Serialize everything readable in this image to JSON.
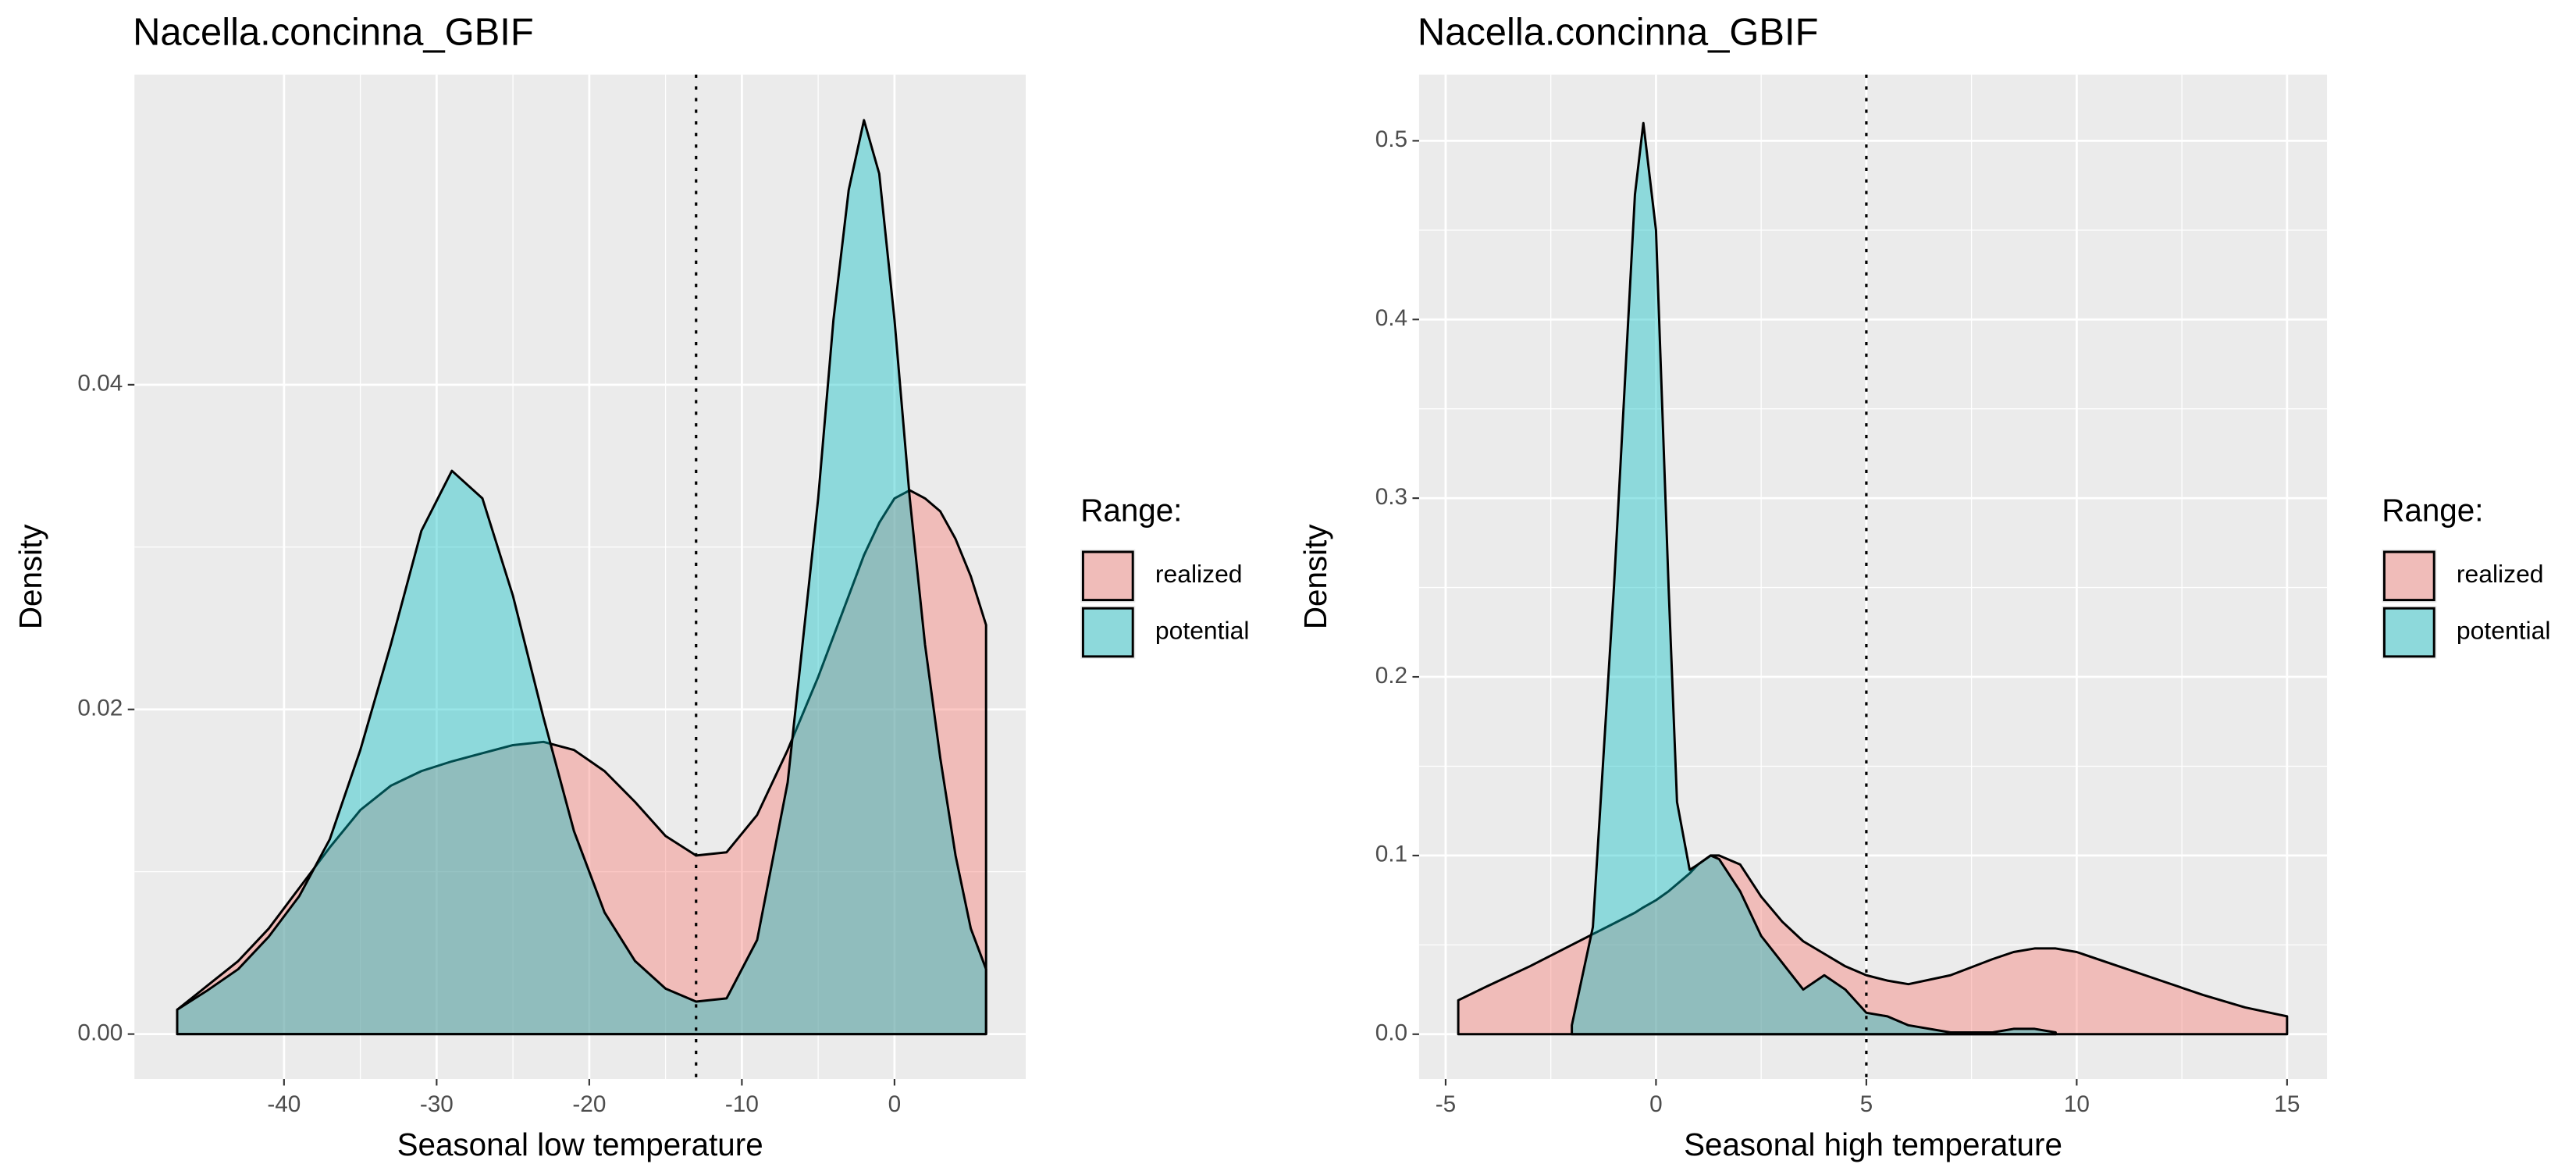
{
  "chart_data": [
    {
      "type": "area",
      "title": "Nacella.concinna_GBIF",
      "xlabel": "Seasonal low temperature",
      "ylabel": "Density",
      "legend_title": "Range:",
      "x": [
        -47,
        -45,
        -43,
        -41,
        -39,
        -37,
        -35,
        -33,
        -31,
        -29,
        -27,
        -25,
        -23,
        -21,
        -19,
        -17,
        -15,
        -13,
        -11,
        -9,
        -7,
        -5,
        -4,
        -3,
        -2,
        -1,
        0,
        1,
        2,
        3,
        4,
        5,
        6
      ],
      "series": [
        {
          "name": "realized",
          "color": "#F8766D",
          "values": [
            0.0015,
            0.003,
            0.0045,
            0.0065,
            0.009,
            0.0115,
            0.0138,
            0.0153,
            0.0162,
            0.0168,
            0.0173,
            0.0178,
            0.018,
            0.0175,
            0.0162,
            0.0143,
            0.0122,
            0.011,
            0.0112,
            0.0135,
            0.0175,
            0.022,
            0.0245,
            0.027,
            0.0295,
            0.0315,
            0.033,
            0.0335,
            0.033,
            0.0322,
            0.0305,
            0.0282,
            0.0252
          ]
        },
        {
          "name": "potential",
          "color": "#00BFC4",
          "values": [
            0.0015,
            0.0027,
            0.004,
            0.006,
            0.0085,
            0.012,
            0.0175,
            0.024,
            0.031,
            0.0347,
            0.033,
            0.027,
            0.0195,
            0.0125,
            0.0075,
            0.0045,
            0.0028,
            0.002,
            0.0022,
            0.0058,
            0.0155,
            0.033,
            0.044,
            0.052,
            0.0563,
            0.053,
            0.044,
            0.033,
            0.024,
            0.017,
            0.011,
            0.0065,
            0.004
          ]
        }
      ],
      "reference_line": -13,
      "xlim": [
        -49.8,
        8.6
      ],
      "ylim": [
        -0.00276,
        0.0591
      ],
      "xticks": [
        -40,
        -30,
        -20,
        -10,
        0
      ],
      "yticks": [
        {
          "value": 0,
          "label": "0.00"
        },
        {
          "value": 0.02,
          "label": "0.02"
        },
        {
          "value": 0.04,
          "label": "0.04"
        }
      ],
      "grid": true
    },
    {
      "type": "area",
      "title": "Nacella.concinna_GBIF",
      "xlabel": "Seasonal high temperature",
      "ylabel": "Density",
      "legend_title": "Range:",
      "x": [
        -4.7,
        -4,
        -3,
        -2,
        -1.5,
        -1,
        -0.5,
        -0.3,
        0,
        0.3,
        0.5,
        0.8,
        1,
        1.3,
        1.5,
        2,
        2.5,
        3,
        3.5,
        4,
        4.5,
        5,
        5.5,
        6,
        7,
        8,
        8.5,
        9,
        9.5,
        10,
        11,
        12,
        13,
        14,
        15
      ],
      "series": [
        {
          "name": "realized",
          "color": "#F8766D",
          "values": [
            0.019,
            0.027,
            0.038,
            0.05,
            0.056,
            0.062,
            0.068,
            0.071,
            0.075,
            0.08,
            0.084,
            0.09,
            0.095,
            0.1,
            0.1,
            0.095,
            0.077,
            0.063,
            0.052,
            0.045,
            0.038,
            0.033,
            0.03,
            0.028,
            0.033,
            0.042,
            0.046,
            0.048,
            0.048,
            0.046,
            0.038,
            0.03,
            0.022,
            0.015,
            0.01
          ]
        },
        {
          "name": "potential",
          "color": "#00BFC4",
          "values": [
            null,
            null,
            null,
            0.005,
            0.06,
            0.25,
            0.47,
            0.51,
            0.45,
            0.25,
            0.13,
            0.092,
            0.095,
            0.1,
            0.098,
            0.08,
            0.055,
            0.04,
            0.025,
            0.033,
            0.025,
            0.012,
            0.01,
            0.005,
            0.001,
            0.001,
            0.003,
            0.003,
            0.001,
            null,
            null,
            null,
            null,
            null,
            null
          ]
        }
      ],
      "reference_line": 5,
      "xlim": [
        -5.63,
        15.95
      ],
      "ylim": [
        -0.025,
        0.537
      ],
      "xticks": [
        -5,
        0,
        5,
        10,
        15
      ],
      "yticks": [
        {
          "value": 0,
          "label": "0.0"
        },
        0.1,
        0.2,
        0.3,
        0.4,
        0.5
      ],
      "grid": true
    }
  ]
}
